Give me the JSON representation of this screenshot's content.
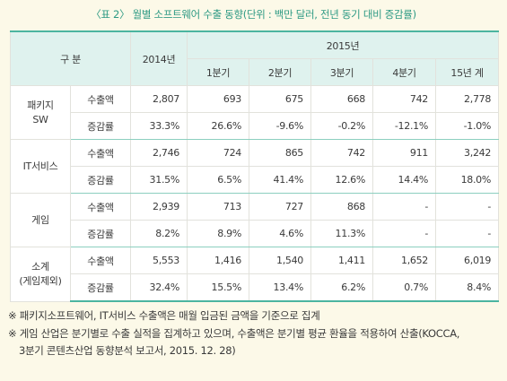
{
  "caption": "〈표 2〉 월별 소프트웨어 수출 동향(단위 : 백만 달러, 전년 동기 대비 증감률)",
  "header": {
    "category": "구 분",
    "year_prev": "2014년",
    "year_cur": "2015년",
    "quarters": [
      "1분기",
      "2분기",
      "3분기",
      "4분기",
      "15년 계"
    ]
  },
  "groups": [
    {
      "name": [
        "패키지",
        "SW"
      ],
      "rows": [
        {
          "metric": "수출액",
          "y2014": "2,807",
          "vals": [
            "693",
            "675",
            "668",
            "742",
            "2,778"
          ]
        },
        {
          "metric": "증감률",
          "y2014": "33.3%",
          "vals": [
            "26.6%",
            "-9.6%",
            "-0.2%",
            "-12.1%",
            "-1.0%"
          ]
        }
      ]
    },
    {
      "name": [
        "IT서비스"
      ],
      "rows": [
        {
          "metric": "수출액",
          "y2014": "2,746",
          "vals": [
            "724",
            "865",
            "742",
            "911",
            "3,242"
          ]
        },
        {
          "metric": "증감률",
          "y2014": "31.5%",
          "vals": [
            "6.5%",
            "41.4%",
            "12.6%",
            "14.4%",
            "18.0%"
          ]
        }
      ]
    },
    {
      "name": [
        "게임"
      ],
      "rows": [
        {
          "metric": "수출액",
          "y2014": "2,939",
          "vals": [
            "713",
            "727",
            "868",
            "-",
            "-"
          ]
        },
        {
          "metric": "증감률",
          "y2014": "8.2%",
          "vals": [
            "8.9%",
            "4.6%",
            "11.3%",
            "-",
            "-"
          ]
        }
      ]
    },
    {
      "name": [
        "소계",
        "(게임제외)"
      ],
      "rows": [
        {
          "metric": "수출액",
          "y2014": "5,553",
          "vals": [
            "1,416",
            "1,540",
            "1,411",
            "1,652",
            "6,019"
          ]
        },
        {
          "metric": "증감률",
          "y2014": "32.4%",
          "vals": [
            "15.5%",
            "13.4%",
            "6.2%",
            "0.7%",
            "8.4%"
          ]
        }
      ]
    }
  ],
  "notes": {
    "note1": "※ 패키지소프트웨어, IT서비스 수출액은 매월 입금된 금액을 기준으로 집계",
    "note2_line1": "※ 게임 산업은 분기별로 수출 실적을 집계하고 있으며, 수출액은 분기별 평균 환율을 적용하여 산출(KOCCA,",
    "note2_line2": "3분기 콘텐츠산업 동향분석 보고서, 2015. 12. 28)"
  }
}
